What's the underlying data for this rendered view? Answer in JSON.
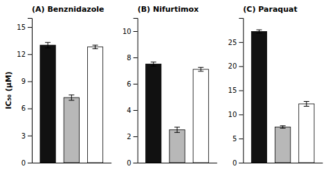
{
  "chart_data": [
    {
      "type": "bar",
      "title": "(A) Benznidazole",
      "ylabel": "IC₅₀ (μM)",
      "categories": [
        null,
        null,
        null
      ],
      "values": [
        13.0,
        7.2,
        12.8
      ],
      "errors": [
        0.3,
        0.3,
        0.2
      ],
      "colors": [
        "#111111",
        "#b8b8b8",
        "#ffffff"
      ],
      "ylim": [
        0,
        16
      ],
      "yticks": [
        0,
        3,
        6,
        9,
        12,
        15
      ],
      "grid": false,
      "tick_labels": "y"
    },
    {
      "type": "bar",
      "title": "(B) Nifurtimox",
      "categories": [
        null,
        null,
        null
      ],
      "values": [
        7.5,
        2.5,
        7.1
      ],
      "errors": [
        0.15,
        0.2,
        0.15
      ],
      "colors": [
        "#111111",
        "#b8b8b8",
        "#ffffff"
      ],
      "ylim": [
        0,
        11
      ],
      "yticks": [
        0,
        2,
        4,
        6,
        8,
        10
      ],
      "grid": false,
      "tick_labels": "y"
    },
    {
      "type": "bar",
      "title": "(C) Paraquat",
      "categories": [
        null,
        null,
        null
      ],
      "values": [
        27.2,
        7.4,
        12.2
      ],
      "errors": [
        0.35,
        0.25,
        0.5
      ],
      "colors": [
        "#111111",
        "#b8b8b8",
        "#ffffff"
      ],
      "ylim": [
        0,
        30
      ],
      "yticks": [
        0,
        5,
        10,
        15,
        20,
        25
      ],
      "grid": false,
      "tick_labels": "y"
    }
  ]
}
